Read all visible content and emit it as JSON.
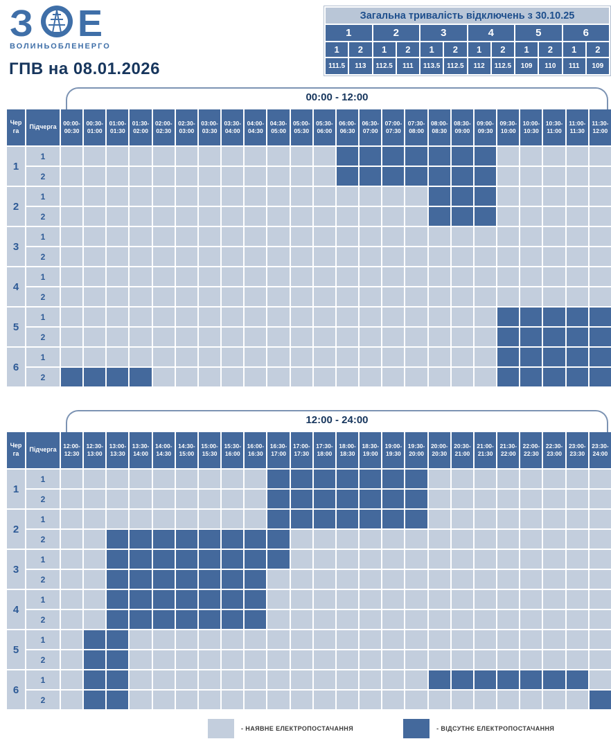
{
  "logo": {
    "letters": [
      "З",
      "Е"
    ],
    "company": "ВОЛИНЬОБЛЕНЕРГО"
  },
  "page_title": "ГПВ на 08.01.2026",
  "summary": {
    "title": "Загальна тривалість відключень з 30.10.25",
    "queues": [
      "1",
      "2",
      "3",
      "4",
      "5",
      "6"
    ],
    "subqueues": [
      "1",
      "2",
      "1",
      "2",
      "1",
      "2",
      "1",
      "2",
      "1",
      "2",
      "1",
      "2"
    ],
    "values": [
      "111.5",
      "113",
      "112.5",
      "111",
      "113.5",
      "112.5",
      "112",
      "112.5",
      "109",
      "110",
      "111",
      "109"
    ]
  },
  "colors": {
    "available_cell": "#c3cedd",
    "absent_cell": "#44699c",
    "summary_title_bg": "#b9c6d7",
    "title_text": "#17365d",
    "logo_blue": "#3f6fa8"
  },
  "tables": [
    {
      "period_label": "00:00 - 12:00",
      "queue_col_header": "Черга",
      "subqueue_col_header": "Підчерга",
      "slots": [
        "00:00-00:30",
        "00:30-01:00",
        "01:00-01:30",
        "01:30-02:00",
        "02:00-02:30",
        "02:30-03:00",
        "03:00-03:30",
        "03:30-04:00",
        "04:00-04:30",
        "04:30-05:00",
        "05:00-05:30",
        "05:30-06:00",
        "06:00-06:30",
        "06:30-07:00",
        "07:00-07:30",
        "07:30-08:00",
        "08:00-08:30",
        "08:30-09:00",
        "09:00-09:30",
        "09:30-10:00",
        "10:00-10:30",
        "10:30-11:00",
        "11:00-11:30",
        "11:30-12:00"
      ],
      "rows": [
        {
          "queue": "1",
          "subqueue": "1",
          "cells": [
            0,
            0,
            0,
            0,
            0,
            0,
            0,
            0,
            0,
            0,
            0,
            0,
            1,
            1,
            1,
            1,
            1,
            1,
            1,
            0,
            0,
            0,
            0,
            0
          ]
        },
        {
          "queue": "1",
          "subqueue": "2",
          "cells": [
            0,
            0,
            0,
            0,
            0,
            0,
            0,
            0,
            0,
            0,
            0,
            0,
            1,
            1,
            1,
            1,
            1,
            1,
            1,
            0,
            0,
            0,
            0,
            0
          ]
        },
        {
          "queue": "2",
          "subqueue": "1",
          "cells": [
            0,
            0,
            0,
            0,
            0,
            0,
            0,
            0,
            0,
            0,
            0,
            0,
            0,
            0,
            0,
            0,
            1,
            1,
            1,
            0,
            0,
            0,
            0,
            0
          ]
        },
        {
          "queue": "2",
          "subqueue": "2",
          "cells": [
            0,
            0,
            0,
            0,
            0,
            0,
            0,
            0,
            0,
            0,
            0,
            0,
            0,
            0,
            0,
            0,
            1,
            1,
            1,
            0,
            0,
            0,
            0,
            0
          ]
        },
        {
          "queue": "3",
          "subqueue": "1",
          "cells": [
            0,
            0,
            0,
            0,
            0,
            0,
            0,
            0,
            0,
            0,
            0,
            0,
            0,
            0,
            0,
            0,
            0,
            0,
            0,
            0,
            0,
            0,
            0,
            0
          ]
        },
        {
          "queue": "3",
          "subqueue": "2",
          "cells": [
            0,
            0,
            0,
            0,
            0,
            0,
            0,
            0,
            0,
            0,
            0,
            0,
            0,
            0,
            0,
            0,
            0,
            0,
            0,
            0,
            0,
            0,
            0,
            0
          ]
        },
        {
          "queue": "4",
          "subqueue": "1",
          "cells": [
            0,
            0,
            0,
            0,
            0,
            0,
            0,
            0,
            0,
            0,
            0,
            0,
            0,
            0,
            0,
            0,
            0,
            0,
            0,
            0,
            0,
            0,
            0,
            0
          ]
        },
        {
          "queue": "4",
          "subqueue": "2",
          "cells": [
            0,
            0,
            0,
            0,
            0,
            0,
            0,
            0,
            0,
            0,
            0,
            0,
            0,
            0,
            0,
            0,
            0,
            0,
            0,
            0,
            0,
            0,
            0,
            0
          ]
        },
        {
          "queue": "5",
          "subqueue": "1",
          "cells": [
            0,
            0,
            0,
            0,
            0,
            0,
            0,
            0,
            0,
            0,
            0,
            0,
            0,
            0,
            0,
            0,
            0,
            0,
            0,
            1,
            1,
            1,
            1,
            1
          ]
        },
        {
          "queue": "5",
          "subqueue": "2",
          "cells": [
            0,
            0,
            0,
            0,
            0,
            0,
            0,
            0,
            0,
            0,
            0,
            0,
            0,
            0,
            0,
            0,
            0,
            0,
            0,
            1,
            1,
            1,
            1,
            1
          ]
        },
        {
          "queue": "6",
          "subqueue": "1",
          "cells": [
            0,
            0,
            0,
            0,
            0,
            0,
            0,
            0,
            0,
            0,
            0,
            0,
            0,
            0,
            0,
            0,
            0,
            0,
            0,
            1,
            1,
            1,
            1,
            1
          ]
        },
        {
          "queue": "6",
          "subqueue": "2",
          "cells": [
            1,
            1,
            1,
            1,
            0,
            0,
            0,
            0,
            0,
            0,
            0,
            0,
            0,
            0,
            0,
            0,
            0,
            0,
            0,
            1,
            1,
            1,
            1,
            1
          ]
        }
      ]
    },
    {
      "period_label": "12:00 - 24:00",
      "queue_col_header": "Черга",
      "subqueue_col_header": "Підчерга",
      "slots": [
        "12:00-12:30",
        "12:30-13:00",
        "13:00-13:30",
        "13:30-14:00",
        "14:00-14:30",
        "14:30-15:00",
        "15:00-15:30",
        "15:30-16:00",
        "16:00-16:30",
        "16:30-17:00",
        "17:00-17:30",
        "17:30-18:00",
        "18:00-18:30",
        "18:30-19:00",
        "19:00-19:30",
        "19:30-20:00",
        "20:00-20:30",
        "20:30-21:00",
        "21:00-21:30",
        "21:30-22:00",
        "22:00-22:30",
        "22:30-23:00",
        "23:00-23:30",
        "23:30-24:00"
      ],
      "rows": [
        {
          "queue": "1",
          "subqueue": "1",
          "cells": [
            0,
            0,
            0,
            0,
            0,
            0,
            0,
            0,
            0,
            1,
            1,
            1,
            1,
            1,
            1,
            1,
            0,
            0,
            0,
            0,
            0,
            0,
            0,
            0
          ]
        },
        {
          "queue": "1",
          "subqueue": "2",
          "cells": [
            0,
            0,
            0,
            0,
            0,
            0,
            0,
            0,
            0,
            1,
            1,
            1,
            1,
            1,
            1,
            1,
            0,
            0,
            0,
            0,
            0,
            0,
            0,
            0
          ]
        },
        {
          "queue": "2",
          "subqueue": "1",
          "cells": [
            0,
            0,
            0,
            0,
            0,
            0,
            0,
            0,
            0,
            1,
            1,
            1,
            1,
            1,
            1,
            1,
            0,
            0,
            0,
            0,
            0,
            0,
            0,
            0
          ]
        },
        {
          "queue": "2",
          "subqueue": "2",
          "cells": [
            0,
            0,
            1,
            1,
            1,
            1,
            1,
            1,
            1,
            1,
            0,
            0,
            0,
            0,
            0,
            0,
            0,
            0,
            0,
            0,
            0,
            0,
            0,
            0
          ]
        },
        {
          "queue": "3",
          "subqueue": "1",
          "cells": [
            0,
            0,
            1,
            1,
            1,
            1,
            1,
            1,
            1,
            1,
            0,
            0,
            0,
            0,
            0,
            0,
            0,
            0,
            0,
            0,
            0,
            0,
            0,
            0
          ]
        },
        {
          "queue": "3",
          "subqueue": "2",
          "cells": [
            0,
            0,
            1,
            1,
            1,
            1,
            1,
            1,
            1,
            0,
            0,
            0,
            0,
            0,
            0,
            0,
            0,
            0,
            0,
            0,
            0,
            0,
            0,
            0
          ]
        },
        {
          "queue": "4",
          "subqueue": "1",
          "cells": [
            0,
            0,
            1,
            1,
            1,
            1,
            1,
            1,
            1,
            0,
            0,
            0,
            0,
            0,
            0,
            0,
            0,
            0,
            0,
            0,
            0,
            0,
            0,
            0
          ]
        },
        {
          "queue": "4",
          "subqueue": "2",
          "cells": [
            0,
            0,
            1,
            1,
            1,
            1,
            1,
            1,
            1,
            0,
            0,
            0,
            0,
            0,
            0,
            0,
            0,
            0,
            0,
            0,
            0,
            0,
            0,
            0
          ]
        },
        {
          "queue": "5",
          "subqueue": "1",
          "cells": [
            0,
            1,
            1,
            0,
            0,
            0,
            0,
            0,
            0,
            0,
            0,
            0,
            0,
            0,
            0,
            0,
            0,
            0,
            0,
            0,
            0,
            0,
            0,
            0
          ]
        },
        {
          "queue": "5",
          "subqueue": "2",
          "cells": [
            0,
            1,
            1,
            0,
            0,
            0,
            0,
            0,
            0,
            0,
            0,
            0,
            0,
            0,
            0,
            0,
            0,
            0,
            0,
            0,
            0,
            0,
            0,
            0
          ]
        },
        {
          "queue": "6",
          "subqueue": "1",
          "cells": [
            0,
            1,
            1,
            0,
            0,
            0,
            0,
            0,
            0,
            0,
            0,
            0,
            0,
            0,
            0,
            0,
            1,
            1,
            1,
            1,
            1,
            1,
            1,
            0
          ]
        },
        {
          "queue": "6",
          "subqueue": "2",
          "cells": [
            0,
            1,
            1,
            0,
            0,
            0,
            0,
            0,
            0,
            0,
            0,
            0,
            0,
            0,
            0,
            0,
            0,
            0,
            0,
            0,
            0,
            0,
            0,
            1
          ]
        }
      ]
    }
  ],
  "legend": [
    {
      "label": "- НАЯВНЕ ЕЛЕКТРОПОСТАЧАННЯ",
      "state": "available"
    },
    {
      "label": "- ВІДСУТНЄ ЕЛЕКТРОПОСТАЧАННЯ",
      "state": "absent"
    }
  ]
}
